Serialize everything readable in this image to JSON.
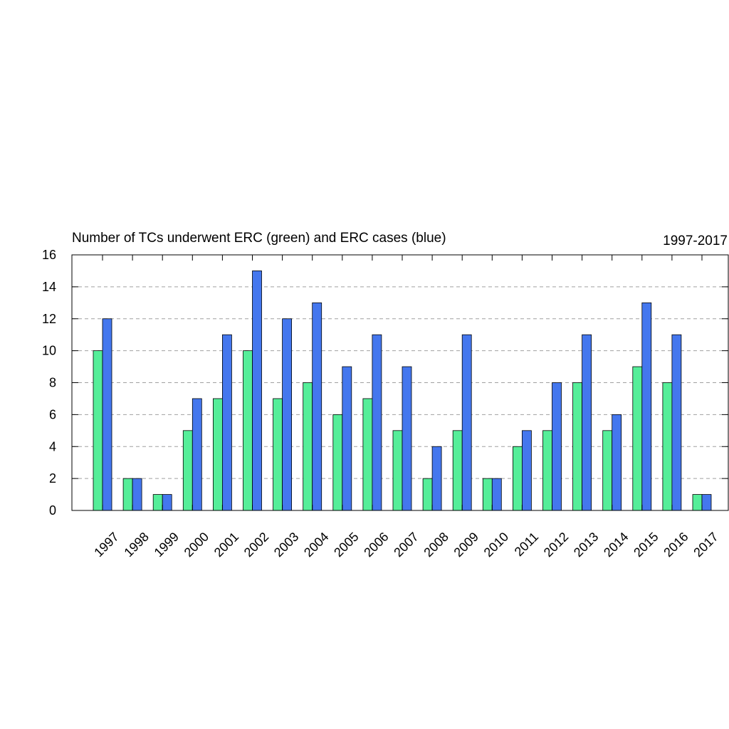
{
  "chart_data": {
    "type": "bar",
    "title": "Number of TCs underwent ERC (green) and ERC cases (blue)",
    "subtitle": "1997-2017",
    "xlabel": "",
    "ylabel": "",
    "categories": [
      "1997",
      "1998",
      "1999",
      "2000",
      "2001",
      "2002",
      "2003",
      "2004",
      "2005",
      "2006",
      "2007",
      "2008",
      "2009",
      "2010",
      "2011",
      "2012",
      "2013",
      "2014",
      "2015",
      "2016",
      "2017"
    ],
    "series": [
      {
        "values": [
          10,
          2,
          1,
          5,
          7,
          10,
          7,
          8,
          6,
          7,
          5,
          2,
          5,
          2,
          4,
          5,
          8,
          5,
          9,
          8,
          1
        ],
        "color": "#55ee99"
      },
      {
        "values": [
          12,
          2,
          1,
          7,
          11,
          15,
          12,
          13,
          9,
          11,
          9,
          4,
          11,
          2,
          5,
          8,
          11,
          6,
          13,
          11,
          1
        ],
        "color": "#4477ee"
      }
    ],
    "ylim": [
      0,
      16
    ],
    "yticks": [
      0,
      2,
      4,
      6,
      8,
      10,
      12,
      14,
      16
    ],
    "grid": true,
    "legend": "none"
  }
}
